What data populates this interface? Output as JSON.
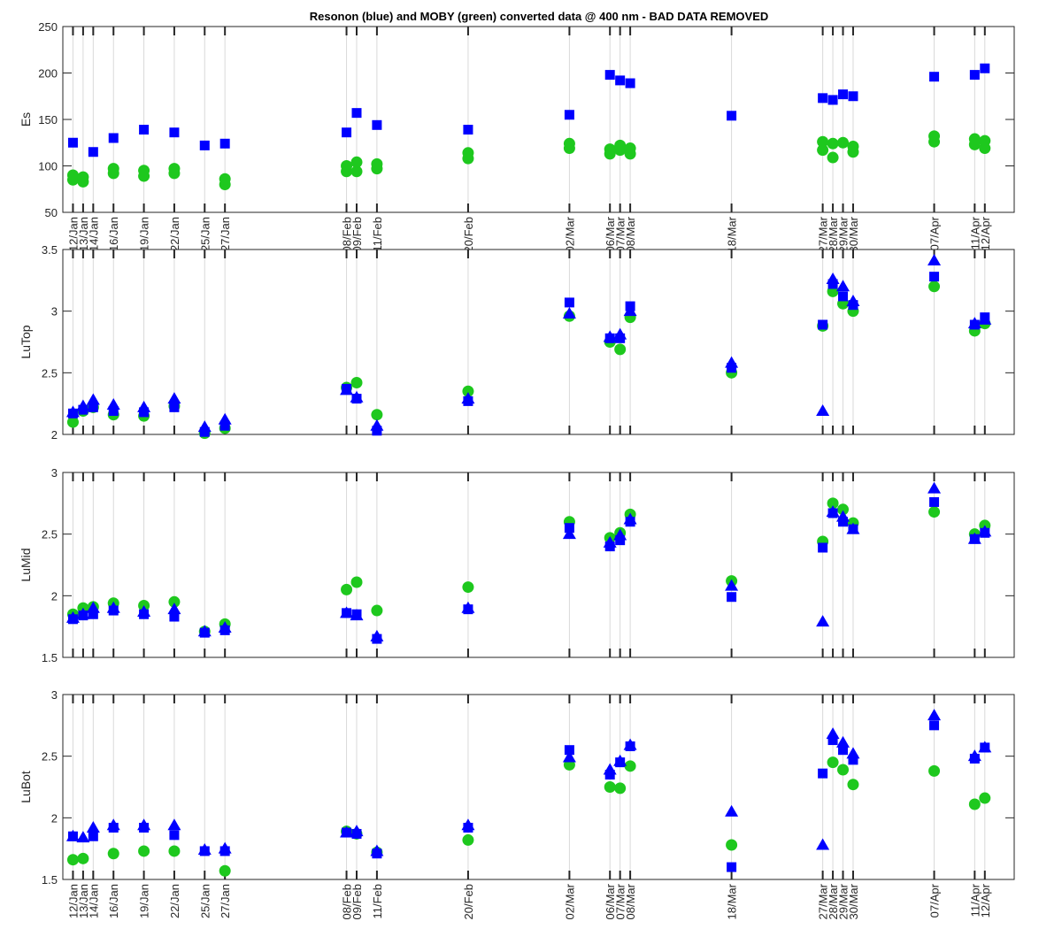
{
  "figure": {
    "title": "Resonon (blue) and MOBY (green) converted data @ 400 nm - BAD DATA REMOVED"
  },
  "colors": {
    "resonon": "#0000ff",
    "moby": "#1ec81e",
    "grid": "#d9d9d9",
    "axis": "#262626"
  },
  "chart_data": [
    {
      "type": "scatter",
      "ylabel": "Es",
      "ylim": [
        50,
        250
      ],
      "yticks": [
        50,
        100,
        150,
        200,
        250
      ],
      "ytick_labels": [
        "50",
        "100",
        "150",
        "200",
        "250"
      ],
      "xlim": [
        11.0,
        104.9
      ],
      "xtick_days": [
        12,
        13,
        14,
        16,
        19,
        22,
        25,
        27,
        39,
        40,
        42,
        51,
        61,
        65,
        66,
        67,
        77,
        86,
        87,
        88,
        89,
        97,
        101,
        102
      ],
      "xtick_labels": [
        "12/Jan",
        "13/Jan",
        "14/Jan",
        "16/Jan",
        "19/Jan",
        "22/Jan",
        "25/Jan",
        "27/Jan",
        "08/Feb",
        "09/Feb",
        "11/Feb",
        "20/Feb",
        "02/Mar",
        "06/Mar",
        "07/Mar",
        "08/Mar",
        "18/Mar",
        "27/Mar",
        "28/Mar",
        "29/Mar",
        "30/Mar",
        "07/Apr",
        "11/Apr",
        "12/Apr"
      ],
      "grid": true,
      "series": [
        {
          "marker": "square",
          "color": "#0000ff",
          "x": [
            12,
            14,
            16,
            19,
            22,
            25,
            27,
            39,
            40,
            42,
            51,
            61,
            65,
            66,
            67,
            77,
            86,
            87,
            88,
            89,
            97,
            101,
            102
          ],
          "y": [
            125,
            115,
            130,
            139,
            136,
            122,
            124,
            136,
            157,
            144,
            139,
            155,
            198,
            192,
            189,
            154,
            173,
            171,
            177,
            175,
            196,
            198,
            205
          ]
        },
        {
          "marker": "circle",
          "color": "#1ec81e",
          "x": [
            12,
            12,
            13,
            13,
            16,
            16,
            19,
            19,
            22,
            22,
            27,
            27,
            39,
            39,
            40,
            40,
            42,
            42,
            51,
            51,
            61,
            61,
            65,
            65,
            66,
            66,
            67,
            67,
            86,
            86,
            87,
            87,
            88,
            89,
            89,
            97,
            97,
            101,
            101,
            102,
            102
          ],
          "y": [
            85,
            90,
            83,
            88,
            92,
            97,
            89,
            95,
            92,
            97,
            80,
            86,
            94,
            100,
            94,
            104,
            97,
            102,
            108,
            114,
            119,
            124,
            113,
            118,
            117,
            122,
            113,
            119,
            117,
            126,
            109,
            124,
            125,
            115,
            121,
            126,
            132,
            123,
            129,
            119,
            127
          ]
        }
      ]
    },
    {
      "type": "scatter",
      "ylabel": "LuTop",
      "ylim": [
        2,
        3.5
      ],
      "yticks": [
        2,
        2.5,
        3,
        3.5
      ],
      "ytick_labels": [
        "2",
        "2.5",
        "3",
        "3.5"
      ],
      "xlim": [
        11.0,
        104.9
      ],
      "xtick_days": [
        12,
        13,
        14,
        16,
        19,
        22,
        25,
        27,
        39,
        40,
        42,
        51,
        61,
        65,
        66,
        67,
        77,
        86,
        87,
        88,
        89,
        97,
        101,
        102
      ],
      "grid": true,
      "series": [
        {
          "marker": "circle",
          "color": "#1ec81e",
          "x": [
            12,
            13,
            14,
            16,
            19,
            22,
            25,
            27,
            39,
            40,
            42,
            51,
            61,
            65,
            66,
            67,
            77,
            86,
            87,
            88,
            89,
            97,
            101,
            102
          ],
          "y": [
            2.1,
            2.19,
            2.22,
            2.16,
            2.15,
            2.23,
            2.01,
            2.05,
            2.38,
            2.42,
            2.16,
            2.35,
            2.96,
            2.75,
            2.69,
            2.95,
            2.5,
            2.88,
            3.16,
            3.06,
            3.0,
            3.2,
            2.84,
            2.9
          ]
        },
        {
          "marker": "square",
          "color": "#0000ff",
          "x": [
            12,
            13,
            14,
            16,
            19,
            22,
            25,
            27,
            39,
            40,
            42,
            51,
            61,
            65,
            66,
            67,
            77,
            86,
            87,
            88,
            89,
            97,
            101,
            102
          ],
          "y": [
            2.17,
            2.2,
            2.22,
            2.19,
            2.18,
            2.22,
            2.02,
            2.07,
            2.37,
            2.29,
            2.03,
            2.27,
            3.07,
            2.78,
            2.78,
            3.04,
            2.54,
            2.89,
            3.22,
            3.12,
            3.05,
            3.28,
            2.89,
            2.95
          ]
        },
        {
          "marker": "triangle",
          "color": "#0000ff",
          "x": [
            12,
            13,
            14,
            16,
            19,
            22,
            25,
            27,
            39,
            40,
            42,
            51,
            61,
            65,
            66,
            67,
            77,
            86,
            87,
            88,
            89,
            97,
            101,
            102
          ],
          "y": [
            2.18,
            2.23,
            2.28,
            2.24,
            2.22,
            2.29,
            2.06,
            2.12,
            2.36,
            2.3,
            2.07,
            2.29,
            2.98,
            2.79,
            2.81,
            3.0,
            2.58,
            2.19,
            3.26,
            3.2,
            3.08,
            3.41,
            2.9,
            2.93
          ]
        }
      ]
    },
    {
      "type": "scatter",
      "ylabel": "LuMid",
      "ylim": [
        1.5,
        3
      ],
      "yticks": [
        1.5,
        2,
        2.5,
        3
      ],
      "ytick_labels": [
        "1.5",
        "2",
        "2.5",
        "3"
      ],
      "xlim": [
        11.0,
        104.9
      ],
      "xtick_days": [
        12,
        13,
        14,
        16,
        19,
        22,
        25,
        27,
        39,
        40,
        42,
        51,
        61,
        65,
        66,
        67,
        77,
        86,
        87,
        88,
        89,
        97,
        101,
        102
      ],
      "grid": true,
      "series": [
        {
          "marker": "circle",
          "color": "#1ec81e",
          "x": [
            12,
            13,
            14,
            16,
            19,
            22,
            25,
            27,
            39,
            40,
            42,
            51,
            61,
            65,
            66,
            67,
            77,
            86,
            87,
            88,
            89,
            97,
            101,
            102
          ],
          "y": [
            1.85,
            1.9,
            1.91,
            1.94,
            1.92,
            1.95,
            1.71,
            1.77,
            2.05,
            2.11,
            1.88,
            2.07,
            2.6,
            2.47,
            2.51,
            2.66,
            2.12,
            2.44,
            2.75,
            2.7,
            2.59,
            2.68,
            2.5,
            2.57
          ]
        },
        {
          "marker": "square",
          "color": "#0000ff",
          "x": [
            12,
            13,
            14,
            16,
            19,
            22,
            25,
            27,
            39,
            40,
            42,
            51,
            61,
            65,
            66,
            67,
            77,
            86,
            87,
            88,
            89,
            97,
            101,
            102
          ],
          "y": [
            1.81,
            1.84,
            1.85,
            1.88,
            1.85,
            1.83,
            1.7,
            1.72,
            1.86,
            1.85,
            1.65,
            1.89,
            2.55,
            2.4,
            2.45,
            2.6,
            1.99,
            2.39,
            2.67,
            2.6,
            2.54,
            2.76,
            2.46,
            2.51
          ]
        },
        {
          "marker": "triangle",
          "color": "#0000ff",
          "x": [
            12,
            13,
            14,
            16,
            19,
            22,
            25,
            27,
            39,
            40,
            42,
            51,
            61,
            65,
            66,
            67,
            77,
            86,
            87,
            88,
            89,
            97,
            101,
            102
          ],
          "y": [
            1.82,
            1.85,
            1.9,
            1.9,
            1.87,
            1.89,
            1.71,
            1.74,
            1.86,
            1.84,
            1.67,
            1.9,
            2.5,
            2.43,
            2.49,
            2.62,
            2.08,
            1.79,
            2.68,
            2.64,
            2.54,
            2.87,
            2.46,
            2.52
          ]
        }
      ]
    },
    {
      "type": "scatter",
      "ylabel": "LuBot",
      "ylim": [
        1.5,
        3
      ],
      "yticks": [
        1.5,
        2,
        2.5,
        3
      ],
      "ytick_labels": [
        "1.5",
        "2",
        "2.5",
        "3"
      ],
      "xlim": [
        11.0,
        104.9
      ],
      "xtick_days": [
        12,
        13,
        14,
        16,
        19,
        22,
        25,
        27,
        39,
        40,
        42,
        51,
        61,
        65,
        66,
        67,
        77,
        86,
        87,
        88,
        89,
        97,
        101,
        102
      ],
      "xtick_labels": [
        "12/Jan",
        "13/Jan",
        "14/Jan",
        "16/Jan",
        "19/Jan",
        "22/Jan",
        "25/Jan",
        "27/Jan",
        "08/Feb",
        "09/Feb",
        "11/Feb",
        "20/Feb",
        "02/Mar",
        "06/Mar",
        "07/Mar",
        "08/Mar",
        "18/Mar",
        "27/Mar",
        "28/Mar",
        "29/Mar",
        "30/Mar",
        "07/Apr",
        "11/Apr",
        "12/Apr"
      ],
      "grid": true,
      "series": [
        {
          "marker": "circle",
          "color": "#1ec81e",
          "x": [
            12,
            13,
            16,
            19,
            22,
            27,
            39,
            40,
            42,
            51,
            61,
            65,
            66,
            67,
            77,
            87,
            88,
            89,
            97,
            101,
            102
          ],
          "y": [
            1.66,
            1.67,
            1.71,
            1.73,
            1.73,
            1.57,
            1.89,
            1.87,
            1.72,
            1.82,
            2.43,
            2.25,
            2.24,
            2.42,
            1.78,
            2.45,
            2.39,
            2.27,
            2.38,
            2.11,
            2.16
          ]
        },
        {
          "marker": "square",
          "color": "#0000ff",
          "x": [
            12,
            14,
            16,
            19,
            22,
            25,
            27,
            39,
            40,
            42,
            51,
            61,
            65,
            66,
            67,
            77,
            86,
            87,
            88,
            89,
            97,
            101,
            102
          ],
          "y": [
            1.85,
            1.85,
            1.92,
            1.92,
            1.86,
            1.73,
            1.73,
            1.88,
            1.87,
            1.71,
            1.92,
            2.55,
            2.35,
            2.45,
            2.58,
            1.6,
            2.36,
            2.63,
            2.55,
            2.47,
            2.75,
            2.48,
            2.57
          ]
        },
        {
          "marker": "triangle",
          "color": "#0000ff",
          "x": [
            12,
            13,
            14,
            16,
            19,
            22,
            25,
            27,
            39,
            40,
            42,
            51,
            61,
            65,
            66,
            67,
            77,
            86,
            87,
            88,
            89,
            97,
            101,
            102
          ],
          "y": [
            1.85,
            1.84,
            1.92,
            1.94,
            1.94,
            1.94,
            1.74,
            1.75,
            1.88,
            1.89,
            1.73,
            1.94,
            2.49,
            2.39,
            2.46,
            2.59,
            2.05,
            1.78,
            2.68,
            2.61,
            2.52,
            2.83,
            2.5,
            2.57
          ]
        }
      ]
    }
  ]
}
